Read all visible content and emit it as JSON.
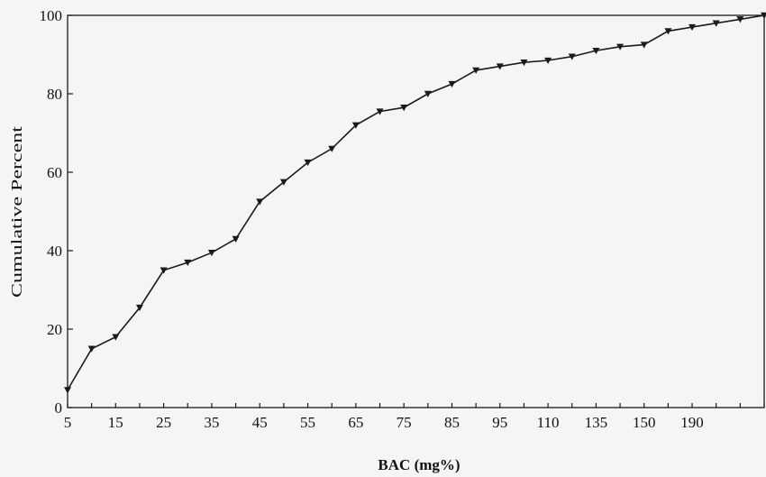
{
  "chart_data": {
    "type": "line",
    "xlabel": "BAC (mg%)",
    "ylabel": "Cumulative Percent",
    "ylim": [
      0,
      100
    ],
    "yticks": [
      "0",
      "20",
      "40",
      "60",
      "80",
      "100"
    ],
    "xtick_labels": [
      "5",
      "15",
      "25",
      "35",
      "45",
      "55",
      "65",
      "75",
      "85",
      "95",
      "110",
      "135",
      "150",
      "190"
    ],
    "x": [
      "5",
      "10",
      "15",
      "20",
      "25",
      "30",
      "35",
      "40",
      "45",
      "50",
      "55",
      "60",
      "65",
      "70",
      "75",
      "80",
      "85",
      "90",
      "95",
      "100",
      "110",
      "120",
      "130",
      "135",
      "140",
      "150",
      "160",
      "170",
      "190",
      "200"
    ],
    "series": [
      {
        "values": [
          4.5,
          15,
          18,
          25.5,
          35,
          37,
          39.5,
          43,
          52.5,
          57.5,
          62.5,
          66,
          72,
          75.5,
          76.5,
          80,
          82.5,
          86,
          87,
          88,
          88.5,
          89.5,
          91,
          92,
          92.5,
          96,
          97,
          98,
          99,
          100
        ]
      }
    ],
    "legend": "none",
    "grid": false
  }
}
